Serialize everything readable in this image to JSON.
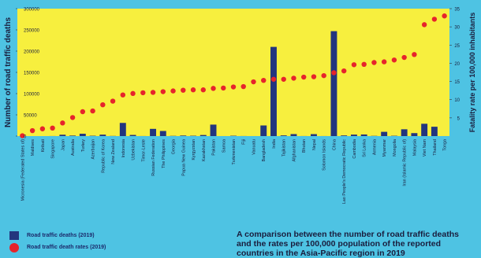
{
  "chart_data": {
    "type": "bar+scatter",
    "title": "A comparison between the number of road traffic deaths and the rates per 100,000 population of the reported countries in the Asia-Pacific region in 2019",
    "ylabel_left": "Number of road traffic deaths",
    "ylabel_right": "Fatality rate per 100,000 inhabitants",
    "ylim_left": [
      0,
      300000
    ],
    "yticks_left": [
      "0",
      "50000",
      "100000",
      "150000",
      "200000",
      "250000",
      "300000"
    ],
    "ylim_right": [
      0,
      35
    ],
    "yticks_right": [
      "5",
      "10",
      "15",
      "20",
      "25",
      "30",
      "35"
    ],
    "grid": false,
    "categories": [
      "Micronesia (Federated States of)",
      "Maldives",
      "Kiribati",
      "Singapore",
      "Japan",
      "Australia",
      "Turkey",
      "Azerbaijan",
      "Republic of Korea",
      "New Zealand",
      "Indonesia",
      "Uzbekistan",
      "Timor-Leste",
      "Russian Federation",
      "The Philippines",
      "Georgia",
      "Papua New Guinea",
      "Kyrgyzstan",
      "Kazakhstan",
      "Pakistan",
      "Samoa",
      "Turkmenistan",
      "Fiji",
      "Vanuatu",
      "Bangladesh",
      "India",
      "Tajikistan",
      "Afghanistan",
      "Bhutan",
      "Nepal",
      "Solomon Islands",
      "China",
      "Lao People's Democratic Republic",
      "Cambodia",
      "Sri Lanka",
      "Armenia",
      "Myanmar",
      "Mongolia",
      "Iran (Islamic Republic of)",
      "Malaysia",
      "Viet Nam",
      "Thailand",
      "Tonga"
    ],
    "series": [
      {
        "name": "Road traffic deaths (2019)",
        "type": "bar",
        "color": "#23357e",
        "values": [
          5,
          10,
          10,
          150,
          3200,
          1200,
          5500,
          800,
          3400,
          350,
          31000,
          2700,
          150,
          17000,
          12000,
          500,
          1300,
          800,
          2500,
          27000,
          40,
          800,
          150,
          50,
          25000,
          210000,
          1600,
          4700,
          150,
          4600,
          100,
          247000,
          1500,
          3500,
          3800,
          500,
          10000,
          700,
          16000,
          7000,
          29000,
          22000,
          50
        ]
      },
      {
        "name": "Road traffic death rates (2019)",
        "type": "scatter",
        "color": "#e6242b",
        "values": [
          0.1,
          1.5,
          2.0,
          2.2,
          3.6,
          5.1,
          6.7,
          6.9,
          8.6,
          9.6,
          11.3,
          11.7,
          11.9,
          12.0,
          12.2,
          12.4,
          12.6,
          12.7,
          12.7,
          13.1,
          13.2,
          13.5,
          13.6,
          14.9,
          15.3,
          15.6,
          15.6,
          15.9,
          16.2,
          16.3,
          16.6,
          17.4,
          17.9,
          19.6,
          19.7,
          20.2,
          20.4,
          20.9,
          21.6,
          22.4,
          30.6,
          32.1,
          33.0
        ]
      }
    ]
  },
  "legend": {
    "bars_label": "Road traffic deaths (2019)",
    "dots_label": "Road traffic death rates (2019)"
  },
  "colors": {
    "background": "#4ec3e3",
    "plot_area": "#f7ef3e",
    "bar": "#23357e",
    "dot": "#e6242b"
  }
}
